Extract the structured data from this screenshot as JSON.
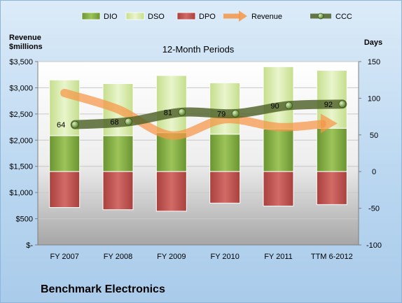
{
  "company_name": "Benchmark Electronics",
  "chart_data": {
    "type": "bar",
    "title": "12-Month Periods",
    "categories": [
      "FY 2007",
      "FY 2008",
      "FY 2009",
      "FY 2010",
      "FY 2011",
      "TTM 6-2012"
    ],
    "left_axis": {
      "label_line1": "Revenue",
      "label_line2": "$millions",
      "ylim": [
        0,
        3500
      ],
      "ticks": [
        0,
        500,
        1000,
        1500,
        2000,
        2500,
        3000,
        3500
      ],
      "tick_labels": [
        "$-",
        "$500",
        "$1,000",
        "$1,500",
        "$2,000",
        "$2,500",
        "$3,000",
        "$3,500"
      ]
    },
    "right_axis": {
      "label": "Days",
      "ylim": [
        -100,
        150
      ],
      "ticks": [
        -100,
        -50,
        0,
        50,
        100,
        150
      ],
      "tick_labels": [
        "-100",
        "-50",
        "0",
        "50",
        "100",
        "150"
      ]
    },
    "legend": [
      {
        "name": "DIO",
        "marker": "box",
        "color": "#7fa83a"
      },
      {
        "name": "DSO",
        "marker": "box",
        "color": "#d3e8a2"
      },
      {
        "name": "DPO",
        "marker": "box",
        "color": "#c0504d"
      },
      {
        "name": "Revenue",
        "marker": "arrow",
        "color": "#f79646"
      },
      {
        "name": "CCC",
        "marker": "dot-line",
        "color": "#4f6228"
      }
    ],
    "legend_position": "top",
    "series": [
      {
        "name": "DIO",
        "axis": "right",
        "values": [
          49,
          49,
          53,
          51,
          58,
          59
        ]
      },
      {
        "name": "DSO",
        "axis": "right",
        "values": [
          76,
          71,
          78,
          70,
          85,
          79
        ]
      },
      {
        "name": "DPO",
        "axis": "right",
        "values": [
          -49,
          -52,
          -54,
          -43,
          -47,
          -45
        ]
      },
      {
        "name": "Revenue",
        "axis": "left",
        "values": [
          2900,
          2590,
          2090,
          2400,
          2250,
          2320
        ]
      },
      {
        "name": "CCC",
        "axis": "right",
        "values": [
          64,
          68,
          81,
          79,
          90,
          92
        ]
      }
    ],
    "data_labels": [
      "64",
      "68",
      "81",
      "79",
      "90",
      "92"
    ],
    "colors": {
      "dio": "#7fa83a",
      "dso": "#d3e8a2",
      "dpo": "#c0504d",
      "revenue": "#f79646",
      "ccc": "#4f6228"
    }
  }
}
